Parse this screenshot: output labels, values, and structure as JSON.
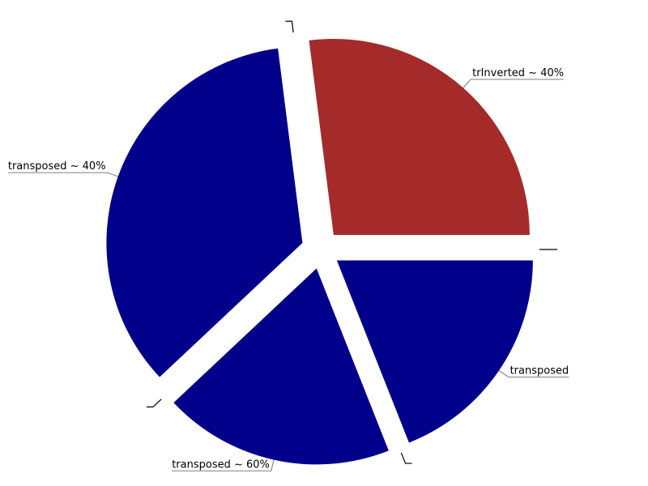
{
  "chart_data": {
    "type": "pie",
    "title": "",
    "legend": "none",
    "start_angle_deg": 0,
    "direction": "counterclockwise",
    "slices": [
      {
        "label": "trInverted ~ 40%",
        "value": 27,
        "color": "#a52a2a"
      },
      {
        "label": "",
        "value": 0,
        "color": "#a52a2a"
      },
      {
        "label": "transposed ~ 40%",
        "value": 35,
        "color": "#00008b"
      },
      {
        "label": "",
        "value": 0,
        "color": "#00008b"
      },
      {
        "label": "transposed ~ 60%",
        "value": 19,
        "color": "#00008b"
      },
      {
        "label": "",
        "value": 0,
        "color": "#00008b"
      },
      {
        "label": "transposed",
        "value": 19,
        "color": "#00008b"
      },
      {
        "label": "",
        "value": 0,
        "color": "#00008b"
      }
    ]
  }
}
